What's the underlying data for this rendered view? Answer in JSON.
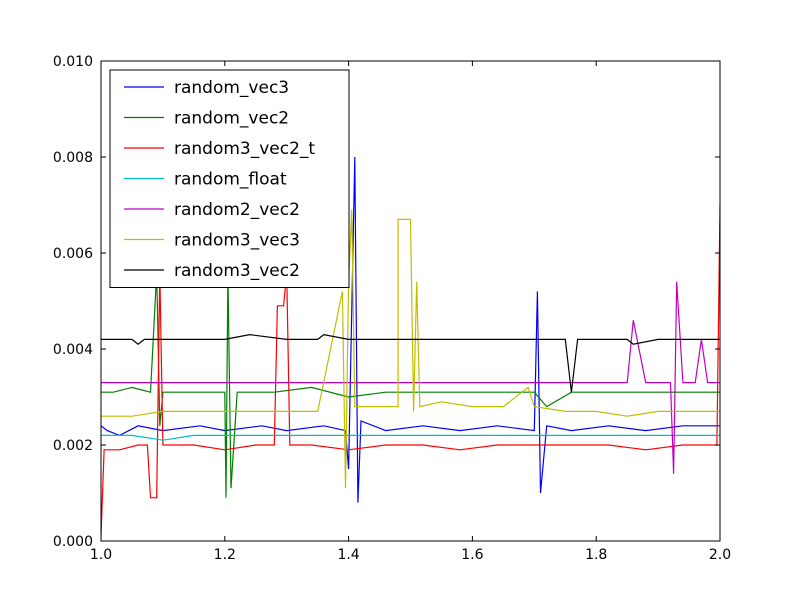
{
  "chart_data": {
    "type": "line",
    "title": "",
    "xlabel": "",
    "ylabel": "",
    "xlim": [
      1.0,
      2.0
    ],
    "ylim": [
      0.0,
      0.01
    ],
    "x_ticks": [
      1.0,
      1.2,
      1.4,
      1.6,
      1.8,
      2.0
    ],
    "x_tick_labels": [
      "1.0",
      "1.2",
      "1.4",
      "1.6",
      "1.8",
      "2.0"
    ],
    "y_ticks": [
      0.0,
      0.002,
      0.004,
      0.006,
      0.008,
      0.01
    ],
    "y_tick_labels": [
      "0.000",
      "0.002",
      "0.004",
      "0.006",
      "0.008",
      "0.010"
    ],
    "grid": false,
    "legend_position": "top-left",
    "series": [
      {
        "name": "random_vec3",
        "color": "#0000ff",
        "points": [
          [
            1.0,
            0.0024
          ],
          [
            1.01,
            0.0023
          ],
          [
            1.03,
            0.0022
          ],
          [
            1.06,
            0.0024
          ],
          [
            1.1,
            0.0023
          ],
          [
            1.16,
            0.0024
          ],
          [
            1.2,
            0.0023
          ],
          [
            1.26,
            0.0024
          ],
          [
            1.3,
            0.0023
          ],
          [
            1.36,
            0.0024
          ],
          [
            1.395,
            0.0023
          ],
          [
            1.4,
            0.0015
          ],
          [
            1.41,
            0.008
          ],
          [
            1.415,
            0.0008
          ],
          [
            1.42,
            0.0025
          ],
          [
            1.46,
            0.0023
          ],
          [
            1.52,
            0.0024
          ],
          [
            1.58,
            0.0023
          ],
          [
            1.64,
            0.0024
          ],
          [
            1.7,
            0.0023
          ],
          [
            1.705,
            0.0052
          ],
          [
            1.71,
            0.001
          ],
          [
            1.72,
            0.0024
          ],
          [
            1.76,
            0.0023
          ],
          [
            1.82,
            0.0024
          ],
          [
            1.88,
            0.0023
          ],
          [
            1.94,
            0.0024
          ],
          [
            2.0,
            0.0024
          ]
        ]
      },
      {
        "name": "random_vec2",
        "color": "#008000",
        "points": [
          [
            1.0,
            0.0031
          ],
          [
            1.02,
            0.0031
          ],
          [
            1.05,
            0.0032
          ],
          [
            1.08,
            0.0031
          ],
          [
            1.09,
            0.0056
          ],
          [
            1.095,
            0.0024
          ],
          [
            1.1,
            0.0031
          ],
          [
            1.15,
            0.0031
          ],
          [
            1.2,
            0.0031
          ],
          [
            1.202,
            0.0009
          ],
          [
            1.205,
            0.0056
          ],
          [
            1.21,
            0.0011
          ],
          [
            1.22,
            0.0031
          ],
          [
            1.28,
            0.0031
          ],
          [
            1.34,
            0.0032
          ],
          [
            1.4,
            0.003
          ],
          [
            1.46,
            0.0031
          ],
          [
            1.52,
            0.0031
          ],
          [
            1.58,
            0.0031
          ],
          [
            1.64,
            0.0031
          ],
          [
            1.7,
            0.0031
          ],
          [
            1.72,
            0.0028
          ],
          [
            1.76,
            0.0031
          ],
          [
            1.82,
            0.0031
          ],
          [
            1.88,
            0.0031
          ],
          [
            1.94,
            0.0031
          ],
          [
            2.0,
            0.0031
          ]
        ]
      },
      {
        "name": "random3_vec2_t",
        "color": "#ff0000",
        "points": [
          [
            1.0,
            0.0001
          ],
          [
            1.005,
            0.0019
          ],
          [
            1.03,
            0.0019
          ],
          [
            1.06,
            0.002
          ],
          [
            1.075,
            0.002
          ],
          [
            1.08,
            0.0009
          ],
          [
            1.09,
            0.0009
          ],
          [
            1.095,
            0.0056
          ],
          [
            1.1,
            0.002
          ],
          [
            1.15,
            0.002
          ],
          [
            1.2,
            0.0019
          ],
          [
            1.25,
            0.002
          ],
          [
            1.28,
            0.002
          ],
          [
            1.285,
            0.0049
          ],
          [
            1.295,
            0.0049
          ],
          [
            1.3,
            0.0056
          ],
          [
            1.305,
            0.002
          ],
          [
            1.34,
            0.002
          ],
          [
            1.4,
            0.0019
          ],
          [
            1.46,
            0.002
          ],
          [
            1.52,
            0.002
          ],
          [
            1.58,
            0.0019
          ],
          [
            1.64,
            0.002
          ],
          [
            1.7,
            0.002
          ],
          [
            1.76,
            0.002
          ],
          [
            1.82,
            0.002
          ],
          [
            1.88,
            0.0019
          ],
          [
            1.94,
            0.002
          ],
          [
            1.995,
            0.002
          ],
          [
            2.0,
            0.007
          ]
        ]
      },
      {
        "name": "random_float",
        "color": "#00bfbf",
        "points": [
          [
            1.0,
            0.0022
          ],
          [
            1.05,
            0.0022
          ],
          [
            1.1,
            0.0021
          ],
          [
            1.15,
            0.0022
          ],
          [
            1.2,
            0.0022
          ],
          [
            1.25,
            0.0022
          ],
          [
            1.3,
            0.0022
          ],
          [
            1.35,
            0.0022
          ],
          [
            1.4,
            0.0022
          ],
          [
            1.45,
            0.0022
          ],
          [
            1.5,
            0.0022
          ],
          [
            1.55,
            0.0022
          ],
          [
            1.6,
            0.0022
          ],
          [
            1.65,
            0.0022
          ],
          [
            1.7,
            0.0022
          ],
          [
            1.75,
            0.0022
          ],
          [
            1.8,
            0.0022
          ],
          [
            1.85,
            0.0022
          ],
          [
            1.9,
            0.0022
          ],
          [
            1.95,
            0.0022
          ],
          [
            2.0,
            0.0022
          ]
        ]
      },
      {
        "name": "random2_vec2",
        "color": "#bf00bf",
        "points": [
          [
            1.0,
            0.0033
          ],
          [
            1.05,
            0.0033
          ],
          [
            1.1,
            0.0033
          ],
          [
            1.15,
            0.0033
          ],
          [
            1.2,
            0.0033
          ],
          [
            1.25,
            0.0033
          ],
          [
            1.3,
            0.0033
          ],
          [
            1.35,
            0.0033
          ],
          [
            1.4,
            0.0033
          ],
          [
            1.45,
            0.0033
          ],
          [
            1.5,
            0.0033
          ],
          [
            1.55,
            0.0033
          ],
          [
            1.6,
            0.0033
          ],
          [
            1.65,
            0.0033
          ],
          [
            1.7,
            0.0033
          ],
          [
            1.75,
            0.0033
          ],
          [
            1.8,
            0.0033
          ],
          [
            1.85,
            0.0033
          ],
          [
            1.86,
            0.0046
          ],
          [
            1.88,
            0.0033
          ],
          [
            1.92,
            0.0033
          ],
          [
            1.925,
            0.0014
          ],
          [
            1.93,
            0.0054
          ],
          [
            1.94,
            0.0033
          ],
          [
            1.96,
            0.0033
          ],
          [
            1.97,
            0.0042
          ],
          [
            1.98,
            0.0033
          ],
          [
            2.0,
            0.0033
          ]
        ]
      },
      {
        "name": "random3_vec3",
        "color": "#bfbf00",
        "points": [
          [
            1.0,
            0.0026
          ],
          [
            1.05,
            0.0026
          ],
          [
            1.1,
            0.0027
          ],
          [
            1.15,
            0.0027
          ],
          [
            1.2,
            0.0027
          ],
          [
            1.25,
            0.0027
          ],
          [
            1.3,
            0.0027
          ],
          [
            1.35,
            0.0027
          ],
          [
            1.39,
            0.0052
          ],
          [
            1.395,
            0.0011
          ],
          [
            1.4,
            0.0054
          ],
          [
            1.405,
            0.0069
          ],
          [
            1.41,
            0.0028
          ],
          [
            1.45,
            0.0028
          ],
          [
            1.48,
            0.0028
          ],
          [
            1.48,
            0.0067
          ],
          [
            1.5,
            0.0067
          ],
          [
            1.505,
            0.0027
          ],
          [
            1.51,
            0.0054
          ],
          [
            1.515,
            0.0028
          ],
          [
            1.55,
            0.0029
          ],
          [
            1.6,
            0.0028
          ],
          [
            1.65,
            0.0028
          ],
          [
            1.69,
            0.0032
          ],
          [
            1.7,
            0.0028
          ],
          [
            1.75,
            0.0027
          ],
          [
            1.8,
            0.0027
          ],
          [
            1.85,
            0.0026
          ],
          [
            1.9,
            0.0027
          ],
          [
            2.0,
            0.0027
          ]
        ]
      },
      {
        "name": "random3_vec2",
        "color": "#000000",
        "points": [
          [
            1.0,
            0.0042
          ],
          [
            1.05,
            0.0042
          ],
          [
            1.06,
            0.0041
          ],
          [
            1.07,
            0.0042
          ],
          [
            1.1,
            0.0042
          ],
          [
            1.2,
            0.0042
          ],
          [
            1.24,
            0.0043
          ],
          [
            1.3,
            0.0042
          ],
          [
            1.35,
            0.0042
          ],
          [
            1.36,
            0.0043
          ],
          [
            1.4,
            0.0042
          ],
          [
            1.42,
            0.0042
          ],
          [
            1.5,
            0.0042
          ],
          [
            1.6,
            0.0042
          ],
          [
            1.7,
            0.0042
          ],
          [
            1.75,
            0.0042
          ],
          [
            1.76,
            0.0031
          ],
          [
            1.77,
            0.0042
          ],
          [
            1.8,
            0.0042
          ],
          [
            1.85,
            0.0042
          ],
          [
            1.86,
            0.0041
          ],
          [
            1.9,
            0.0042
          ],
          [
            2.0,
            0.0042
          ]
        ]
      }
    ]
  }
}
